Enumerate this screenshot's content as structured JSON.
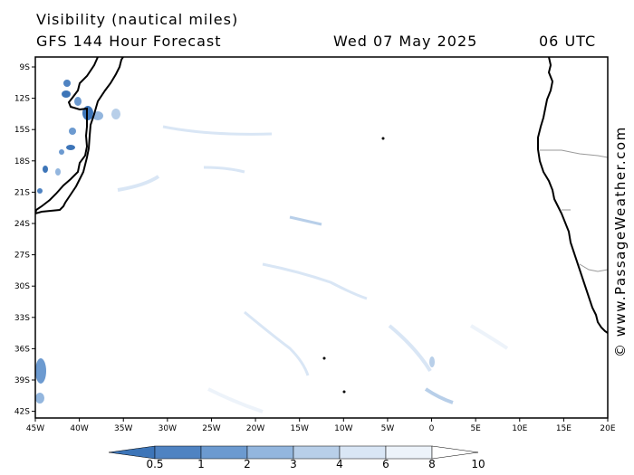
{
  "header": {
    "title": "Visibility (nautical miles)",
    "subtitle": "GFS 144 Hour Forecast",
    "date": "Wed 07 May 2025",
    "time": "06 UTC"
  },
  "credit": "© www.PassageWeather.com",
  "map": {
    "lat_labels": [
      "9S",
      "12S",
      "15S",
      "18S",
      "21S",
      "24S",
      "27S",
      "30S",
      "33S",
      "36S",
      "39S",
      "42S"
    ],
    "lon_labels": [
      "45W",
      "40W",
      "35W",
      "30W",
      "25W",
      "20W",
      "15W",
      "10W",
      "5W",
      "0",
      "5E",
      "10E",
      "15E",
      "20E"
    ],
    "lat_range": [
      -8.5,
      -43
    ],
    "lon_range": [
      -45,
      20
    ],
    "coast_color": "#000000",
    "border_color": "#999999"
  },
  "legend": {
    "values": [
      "0.5",
      "1",
      "2",
      "3",
      "4",
      "6",
      "8",
      "10"
    ],
    "colors": [
      "#3d75b8",
      "#4f83c2",
      "#6c9ad0",
      "#93b6de",
      "#b8cfe9",
      "#d9e6f5",
      "#edf3fa",
      "#ffffff"
    ]
  }
}
